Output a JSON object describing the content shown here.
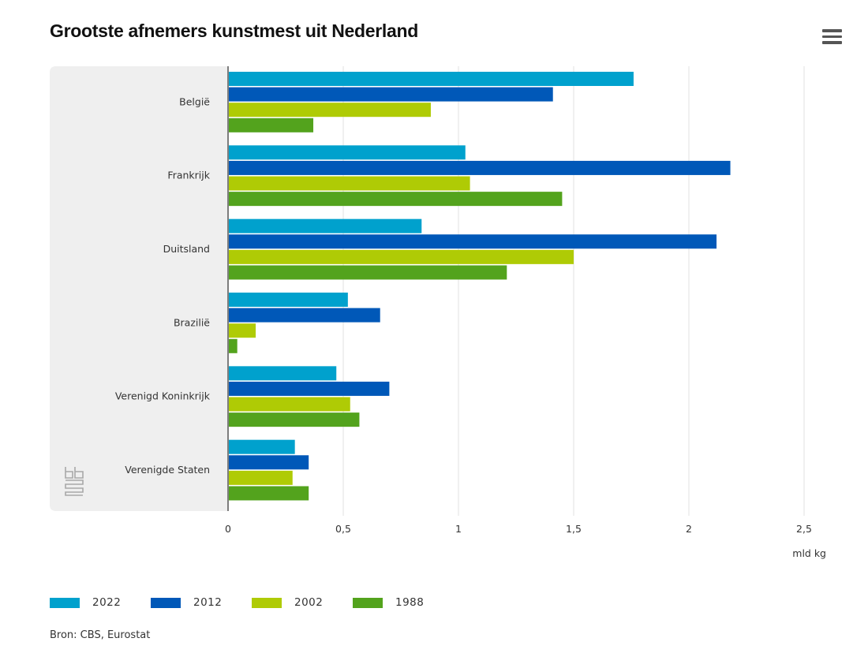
{
  "header": {
    "title": "Grootste afnemers kunstmest uit Nederland",
    "menu_icon": "hamburger-menu-icon"
  },
  "logo": {
    "icon": "cbs-logo-icon"
  },
  "source": "Bron: CBS, Eurostat",
  "chart_data": {
    "type": "bar",
    "orientation": "horizontal",
    "title": "Grootste afnemers kunstmest uit Nederland",
    "xlabel": "mld kg",
    "ylabel": "",
    "xlim": [
      0,
      2.5
    ],
    "xticks": [
      0,
      0.5,
      1,
      1.5,
      2,
      2.5
    ],
    "xtick_labels": [
      "0",
      "0,5",
      "1",
      "1,5",
      "2",
      "2,5"
    ],
    "grid": true,
    "legend_position": "bottom-left",
    "categories": [
      "België",
      "Frankrijk",
      "Duitsland",
      "Brazilië",
      "Verenigd Koninkrijk",
      "Verenigde Staten"
    ],
    "series": [
      {
        "name": "2022",
        "color": "#00a1cd",
        "values": [
          1.76,
          1.03,
          0.84,
          0.52,
          0.47,
          0.29
        ]
      },
      {
        "name": "2012",
        "color": "#0058b8",
        "values": [
          1.41,
          2.18,
          2.12,
          0.66,
          0.7,
          0.35
        ]
      },
      {
        "name": "2002",
        "color": "#afcb05",
        "values": [
          0.88,
          1.05,
          1.5,
          0.12,
          0.53,
          0.28
        ]
      },
      {
        "name": "1988",
        "color": "#53a31d",
        "values": [
          0.37,
          1.45,
          1.21,
          0.04,
          0.57,
          0.35
        ]
      }
    ]
  }
}
